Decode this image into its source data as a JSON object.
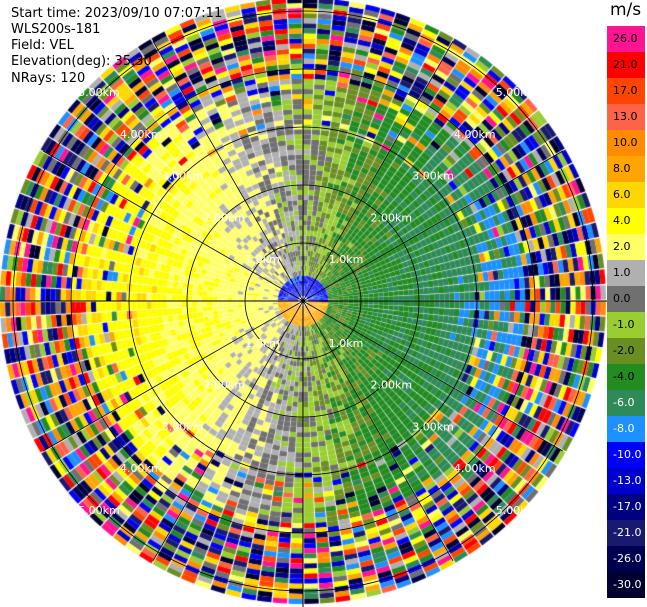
{
  "header": {
    "start_time": "Start time: 2023/09/10 07:07:11",
    "instrument": "WLS200s-181",
    "field": "Field: VEL",
    "elevation": "Elevation(deg): 35.30",
    "nrays": "NRays: 120"
  },
  "colorbar": {
    "unit": "m/s",
    "levels": [
      {
        "label": "26.0",
        "color": "#ff1493",
        "text_color": "#000000"
      },
      {
        "label": "21.0",
        "color": "#ff0000",
        "text_color": "#000000"
      },
      {
        "label": "17.0",
        "color": "#ff4500",
        "text_color": "#000000"
      },
      {
        "label": "13.0",
        "color": "#ff6347",
        "text_color": "#000000"
      },
      {
        "label": "10.0",
        "color": "#ff8c00",
        "text_color": "#000000"
      },
      {
        "label": "8.0",
        "color": "#ffa500",
        "text_color": "#000000"
      },
      {
        "label": "6.0",
        "color": "#ffd700",
        "text_color": "#000000"
      },
      {
        "label": "4.0",
        "color": "#ffff00",
        "text_color": "#000000"
      },
      {
        "label": "2.0",
        "color": "#ffff66",
        "text_color": "#000000"
      },
      {
        "label": "1.0",
        "color": "#b0b0b0",
        "text_color": "#000000"
      },
      {
        "label": "0.0",
        "color": "#707070",
        "text_color": "#000000"
      },
      {
        "label": "-1.0",
        "color": "#9acd32",
        "text_color": "#000000"
      },
      {
        "label": "-2.0",
        "color": "#6b8e23",
        "text_color": "#000000"
      },
      {
        "label": "-4.0",
        "color": "#228b22",
        "text_color": "#000000"
      },
      {
        "label": "-6.0",
        "color": "#2e8b57",
        "text_color": "#ffffff"
      },
      {
        "label": "-8.0",
        "color": "#1e90ff",
        "text_color": "#ffffff"
      },
      {
        "label": "-10.0",
        "color": "#0000ff",
        "text_color": "#ffffff"
      },
      {
        "label": "-13.0",
        "color": "#0000cd",
        "text_color": "#ffffff"
      },
      {
        "label": "-17.0",
        "color": "#000080",
        "text_color": "#ffffff"
      },
      {
        "label": "-21.0",
        "color": "#191970",
        "text_color": "#ffffff"
      },
      {
        "label": "-26.0",
        "color": "#000050",
        "text_color": "#ffffff"
      },
      {
        "label": "-30.0",
        "color": "#000030",
        "text_color": "#ffffff"
      }
    ]
  },
  "range_labels": [
    "1.0km",
    "2.00km",
    "3.00km",
    "4.00km",
    "5.00km"
  ],
  "colors": {
    "ring_line": "#000000",
    "range_label": "#ffffff"
  }
}
